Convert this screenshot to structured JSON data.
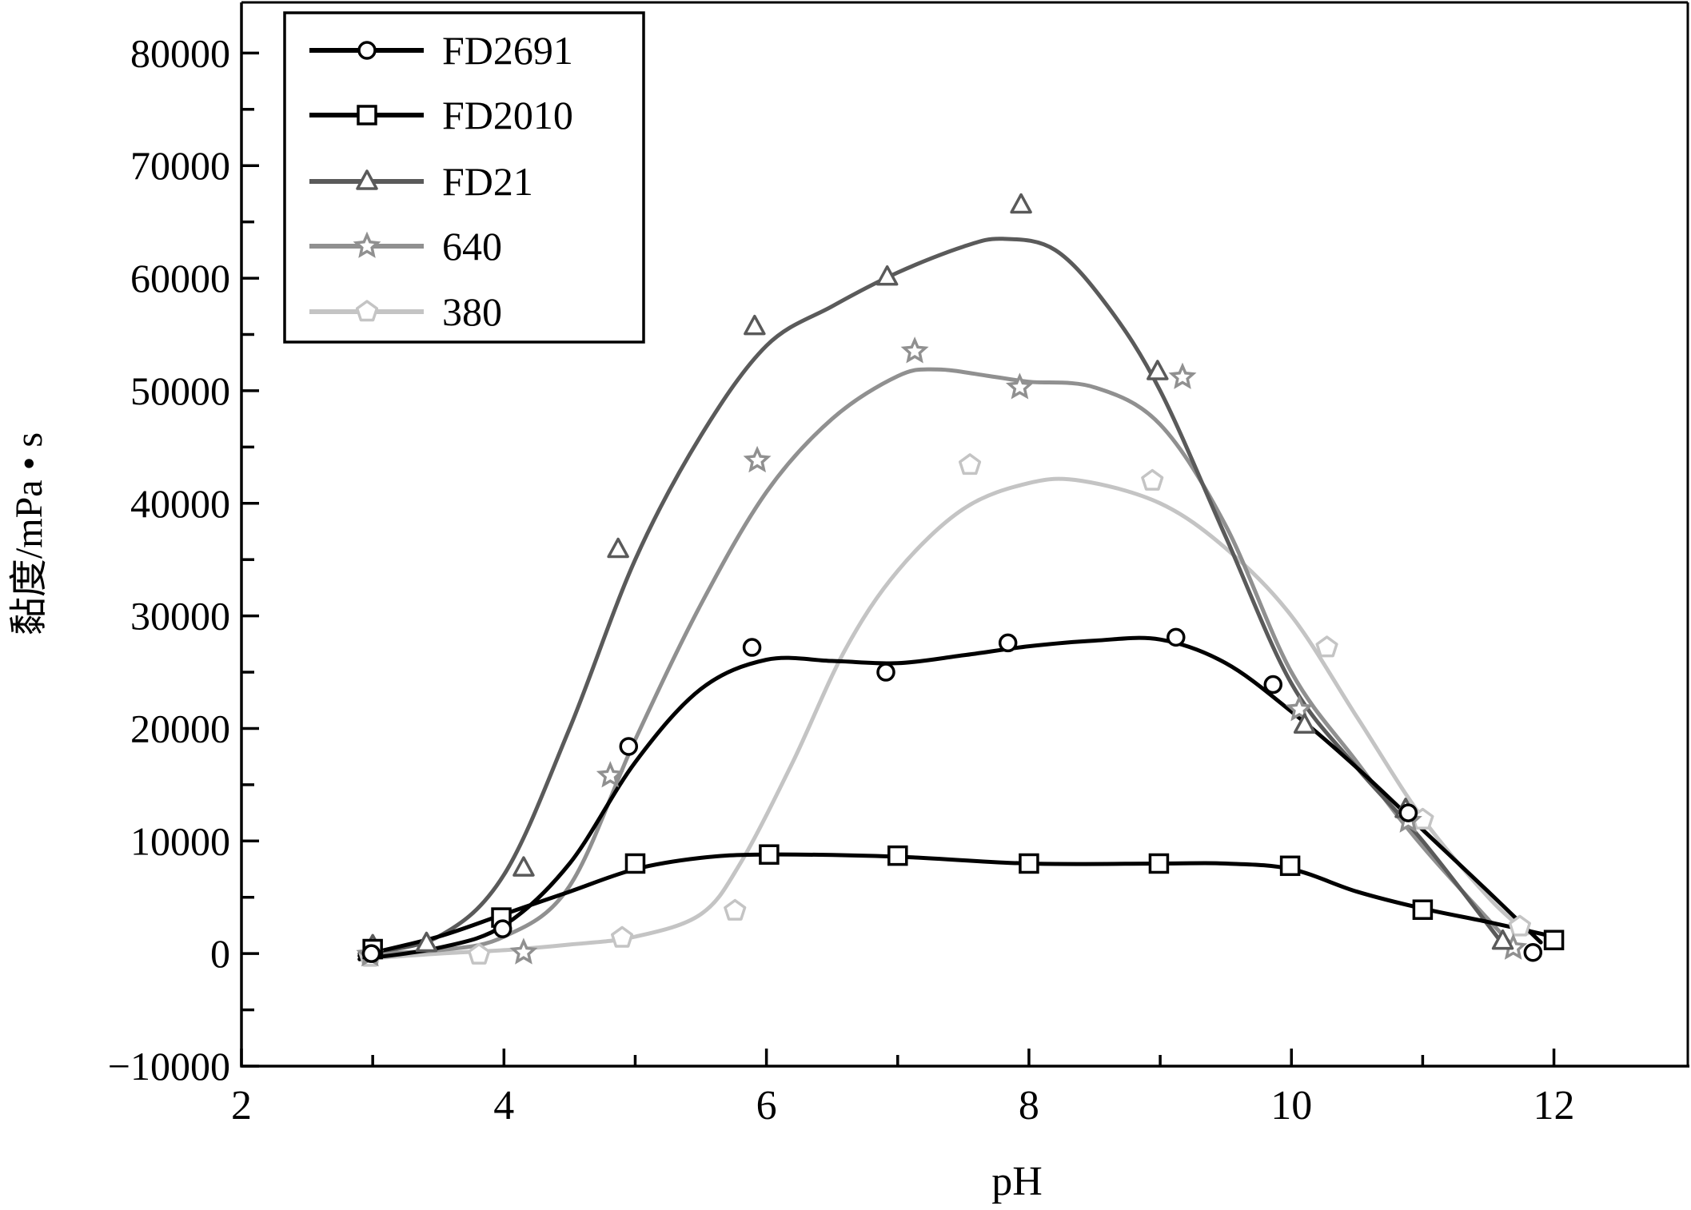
{
  "chart_data": {
    "type": "line",
    "title": "",
    "xlabel": "pH",
    "ylabel": "黏度/mPa • s",
    "xlim": [
      2,
      13.02
    ],
    "ylim": [
      -10000,
      84500
    ],
    "x_ticks": [
      2,
      4,
      6,
      8,
      10,
      12
    ],
    "x_tick_labels": [
      "2",
      "4",
      "6",
      "8",
      "10",
      "12"
    ],
    "x_minor_ticks": [
      3,
      5,
      7,
      9,
      11
    ],
    "y_ticks": [
      -10000,
      0,
      10000,
      20000,
      30000,
      40000,
      50000,
      60000,
      70000,
      80000
    ],
    "y_tick_labels": [
      "−10000",
      "0",
      "10000",
      "20000",
      "30000",
      "40000",
      "50000",
      "60000",
      "70000",
      "80000"
    ],
    "y_minor_ticks": [
      -5000,
      5000,
      15000,
      25000,
      35000,
      45000,
      55000,
      65000,
      75000
    ],
    "grid": false,
    "legend_position": "top-left",
    "series": [
      {
        "name": "FD2691",
        "color": "#000000",
        "marker": "circle",
        "points": [
          [
            2.99,
            0
          ],
          [
            3.99,
            2200
          ],
          [
            4.95,
            18400
          ],
          [
            5.89,
            27200
          ],
          [
            6.91,
            25000
          ],
          [
            7.84,
            27600
          ],
          [
            9.12,
            28100
          ],
          [
            9.86,
            23900
          ],
          [
            10.89,
            12500
          ],
          [
            11.84,
            100
          ]
        ],
        "fit": [
          [
            2.9,
            -500
          ],
          [
            3.5,
            500
          ],
          [
            4,
            2500
          ],
          [
            4.5,
            8000
          ],
          [
            5,
            17000
          ],
          [
            5.5,
            23500
          ],
          [
            6,
            26100
          ],
          [
            6.5,
            26000
          ],
          [
            7,
            25800
          ],
          [
            7.5,
            26500
          ],
          [
            8,
            27300
          ],
          [
            8.5,
            27800
          ],
          [
            9,
            27900
          ],
          [
            9.5,
            25800
          ],
          [
            10,
            21500
          ],
          [
            10.5,
            16500
          ],
          [
            11,
            11000
          ],
          [
            11.5,
            5500
          ],
          [
            11.9,
            1000
          ]
        ]
      },
      {
        "name": "FD2010",
        "color": "#000000",
        "marker": "square",
        "points": [
          [
            3.0,
            400
          ],
          [
            3.98,
            3200
          ],
          [
            5.0,
            8000
          ],
          [
            6.02,
            8800
          ],
          [
            7.0,
            8700
          ],
          [
            8.0,
            8000
          ],
          [
            8.99,
            8000
          ],
          [
            9.99,
            7800
          ],
          [
            11.0,
            3900
          ],
          [
            12.0,
            1200
          ]
        ],
        "fit": [
          [
            2.9,
            -200
          ],
          [
            3.5,
            1500
          ],
          [
            4,
            3500
          ],
          [
            4.5,
            5500
          ],
          [
            5,
            7500
          ],
          [
            5.5,
            8500
          ],
          [
            6,
            8800
          ],
          [
            7,
            8600
          ],
          [
            8,
            8000
          ],
          [
            9,
            8000
          ],
          [
            9.5,
            8000
          ],
          [
            10,
            7500
          ],
          [
            10.5,
            5500
          ],
          [
            11,
            4000
          ],
          [
            11.5,
            2800
          ],
          [
            12,
            1500
          ]
        ]
      },
      {
        "name": "FD21",
        "color": "#5a5a5a",
        "marker": "triangle",
        "points": [
          [
            3.0,
            700
          ],
          [
            3.41,
            900
          ],
          [
            4.15,
            7600
          ],
          [
            4.87,
            35900
          ],
          [
            5.91,
            55700
          ],
          [
            6.92,
            60100
          ],
          [
            7.94,
            66500
          ],
          [
            8.98,
            51700
          ],
          [
            10.1,
            20300
          ],
          [
            10.87,
            12800
          ],
          [
            11.61,
            1100
          ]
        ],
        "fit": [
          [
            2.9,
            0
          ],
          [
            3.5,
            1500
          ],
          [
            4,
            7000
          ],
          [
            4.5,
            20000
          ],
          [
            5,
            35000
          ],
          [
            5.5,
            46000
          ],
          [
            6,
            54000
          ],
          [
            6.5,
            57500
          ],
          [
            7,
            60500
          ],
          [
            7.5,
            62800
          ],
          [
            7.8,
            63500
          ],
          [
            8.2,
            62500
          ],
          [
            8.6,
            57500
          ],
          [
            9,
            50000
          ],
          [
            9.5,
            37000
          ],
          [
            10,
            24000
          ],
          [
            10.5,
            16500
          ],
          [
            11,
            10000
          ],
          [
            11.6,
            1000
          ]
        ]
      },
      {
        "name": "640",
        "color": "#909090",
        "marker": "star",
        "points": [
          [
            2.98,
            -100
          ],
          [
            4.15,
            100
          ],
          [
            4.81,
            15800
          ],
          [
            5.93,
            43800
          ],
          [
            7.13,
            53500
          ],
          [
            7.93,
            50300
          ],
          [
            9.17,
            51200
          ],
          [
            10.06,
            21700
          ],
          [
            10.89,
            11800
          ],
          [
            11.69,
            500
          ]
        ],
        "fit": [
          [
            2.9,
            0
          ],
          [
            3.5,
            300
          ],
          [
            4,
            1500
          ],
          [
            4.5,
            6000
          ],
          [
            5,
            19000
          ],
          [
            5.5,
            31000
          ],
          [
            6,
            41000
          ],
          [
            6.5,
            47500
          ],
          [
            7,
            51300
          ],
          [
            7.3,
            51900
          ],
          [
            7.7,
            51300
          ],
          [
            8,
            50800
          ],
          [
            8.5,
            50300
          ],
          [
            9,
            47000
          ],
          [
            9.5,
            38000
          ],
          [
            10,
            25000
          ],
          [
            10.5,
            17000
          ],
          [
            11,
            9500
          ],
          [
            11.7,
            500
          ]
        ]
      },
      {
        "name": "380",
        "color": "#c4c4c4",
        "marker": "pentagon",
        "points": [
          [
            2.98,
            -300
          ],
          [
            3.81,
            -100
          ],
          [
            4.9,
            1400
          ],
          [
            5.76,
            3800
          ],
          [
            7.55,
            43400
          ],
          [
            8.94,
            42000
          ],
          [
            10.27,
            27200
          ],
          [
            11.0,
            11900
          ],
          [
            11.74,
            2400
          ]
        ],
        "fit": [
          [
            2.9,
            -500
          ],
          [
            3.5,
            0
          ],
          [
            4,
            300
          ],
          [
            4.5,
            800
          ],
          [
            5,
            1500
          ],
          [
            5.5,
            3500
          ],
          [
            5.8,
            8000
          ],
          [
            6.2,
            17000
          ],
          [
            6.6,
            27000
          ],
          [
            7,
            34000
          ],
          [
            7.5,
            39500
          ],
          [
            8,
            41800
          ],
          [
            8.4,
            42000
          ],
          [
            9,
            40000
          ],
          [
            9.5,
            36000
          ],
          [
            10,
            30000
          ],
          [
            10.5,
            21000
          ],
          [
            11,
            12000
          ],
          [
            11.5,
            5000
          ],
          [
            11.8,
            1800
          ]
        ]
      }
    ]
  }
}
